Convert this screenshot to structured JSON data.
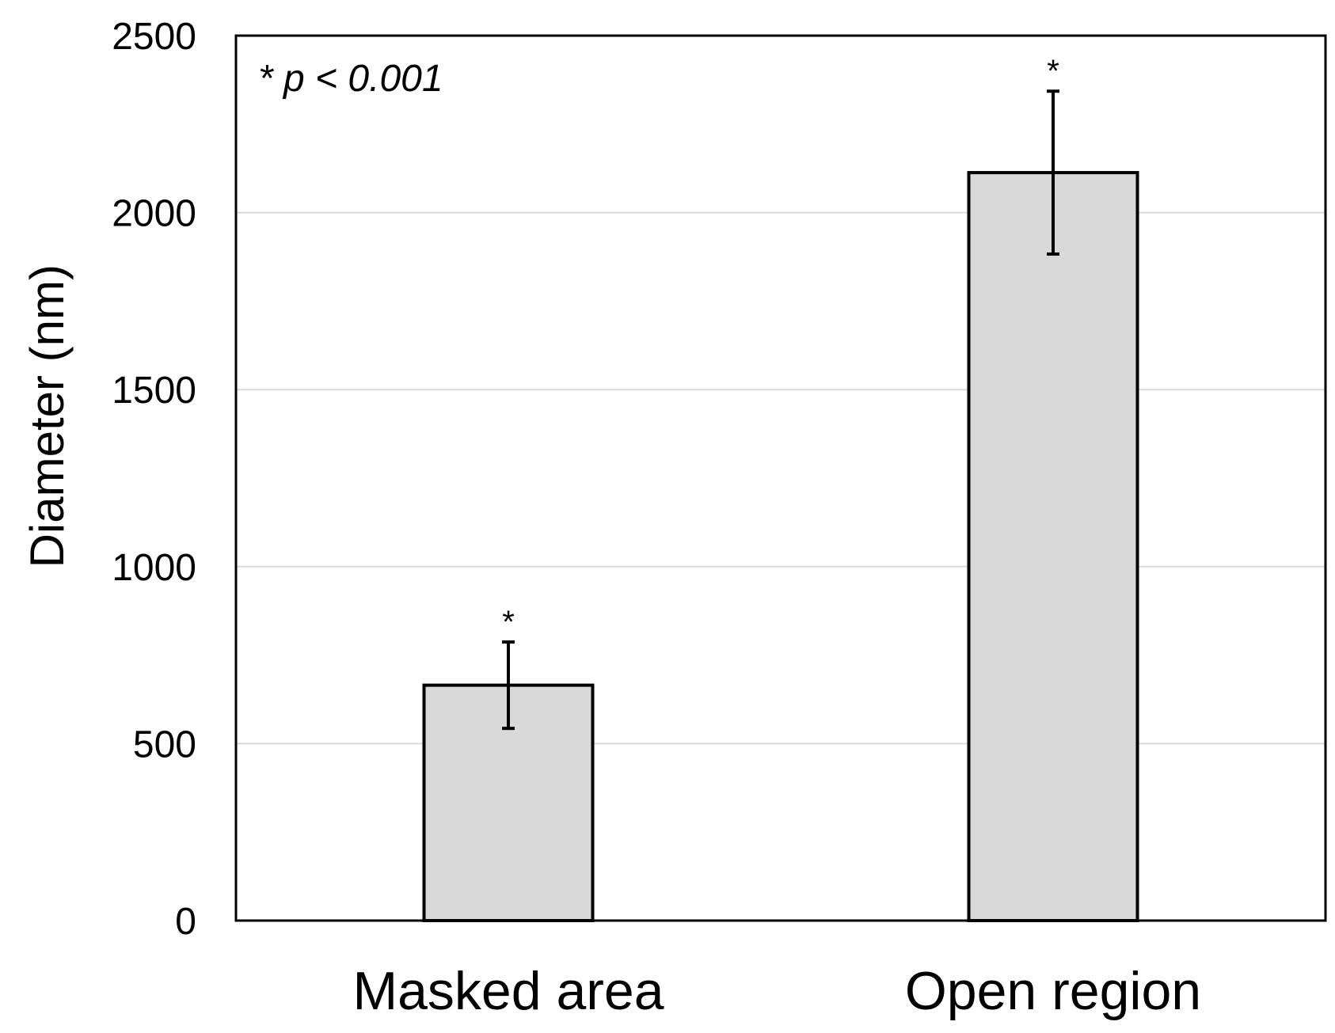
{
  "chart_data": {
    "type": "bar",
    "categories": [
      "Masked area",
      "Open region"
    ],
    "values": [
      665,
      2113
    ],
    "error": [
      122,
      230
    ],
    "significance_markers": [
      "*",
      "*"
    ],
    "title": "",
    "xlabel": "",
    "ylabel": "Diameter (nm)",
    "ylim": [
      0,
      2500
    ],
    "yticks": [
      0,
      500,
      1000,
      1500,
      2000,
      2500
    ],
    "grid": true,
    "annotation": "* p < 0.001",
    "colors": {
      "bar_fill": "#d9d9d9",
      "bar_stroke": "#000000",
      "grid": "#d9d9d9",
      "axis": "#000000"
    }
  }
}
